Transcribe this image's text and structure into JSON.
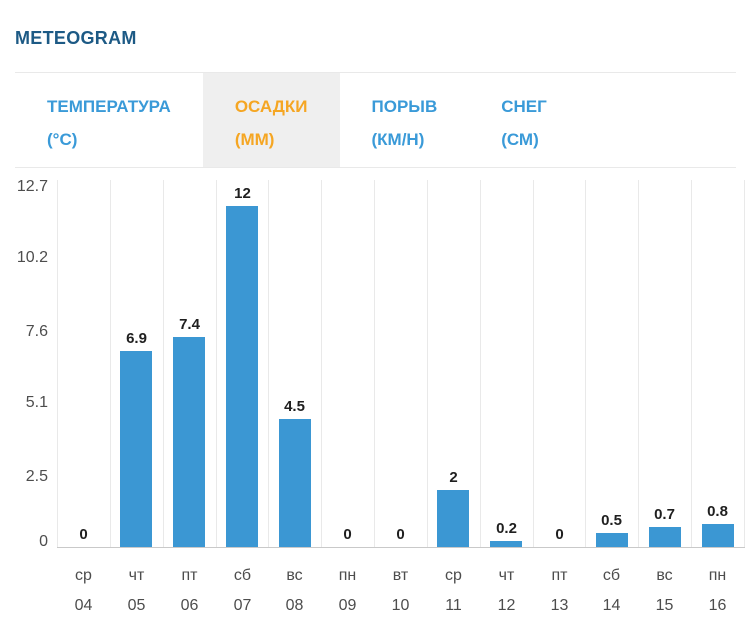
{
  "page": {
    "title": "METEOGRAM"
  },
  "tabs": [
    {
      "label": "ТЕМПЕРАТУРА",
      "unit": "(°C)",
      "active": false
    },
    {
      "label": "ОСАДКИ",
      "unit": "(ММ)",
      "active": true
    },
    {
      "label": "ПОРЫВ",
      "unit": "(КМ/Н)",
      "active": false
    },
    {
      "label": "СНЕГ",
      "unit": "(СМ)",
      "active": false
    }
  ],
  "colors": {
    "title_text": "#1d5a85",
    "tab_text": "#3a9ad8",
    "tab_active_text": "#f5a623",
    "tab_active_bg": "#efefef",
    "bar": "#3b97d3",
    "gridline": "#e9e9e9",
    "axis_line": "#c9c9c9",
    "tick_text": "#4d4d4d",
    "value_text": "#1f1f1f"
  },
  "chart_data": {
    "type": "bar",
    "title": "METEOGRAM — ОСАДКИ (ММ)",
    "xlabel": "",
    "ylabel": "",
    "categories_day": [
      "ср",
      "чт",
      "пт",
      "сб",
      "вс",
      "пн",
      "вт",
      "ср",
      "чт",
      "пт",
      "сб",
      "вс",
      "пн"
    ],
    "categories_date": [
      "04",
      "05",
      "06",
      "07",
      "08",
      "09",
      "10",
      "11",
      "12",
      "13",
      "14",
      "15",
      "16"
    ],
    "values": [
      0,
      6.9,
      7.4,
      12,
      4.5,
      0,
      0,
      2,
      0.2,
      0,
      0.5,
      0.7,
      0.8
    ],
    "value_labels": [
      "0",
      "6.9",
      "7.4",
      "12",
      "4.5",
      "0",
      "0",
      "2",
      "0.2",
      "0",
      "0.5",
      "0.7",
      "0.8"
    ],
    "y_ticks": [
      0,
      2.5,
      5.1,
      7.6,
      10.2,
      12.7
    ],
    "y_tick_labels": [
      "0",
      "2.5",
      "5.1",
      "7.6",
      "10.2",
      "12.7"
    ],
    "ylim": [
      0,
      12.7
    ],
    "grid": "vertical-only",
    "legend": "none"
  }
}
